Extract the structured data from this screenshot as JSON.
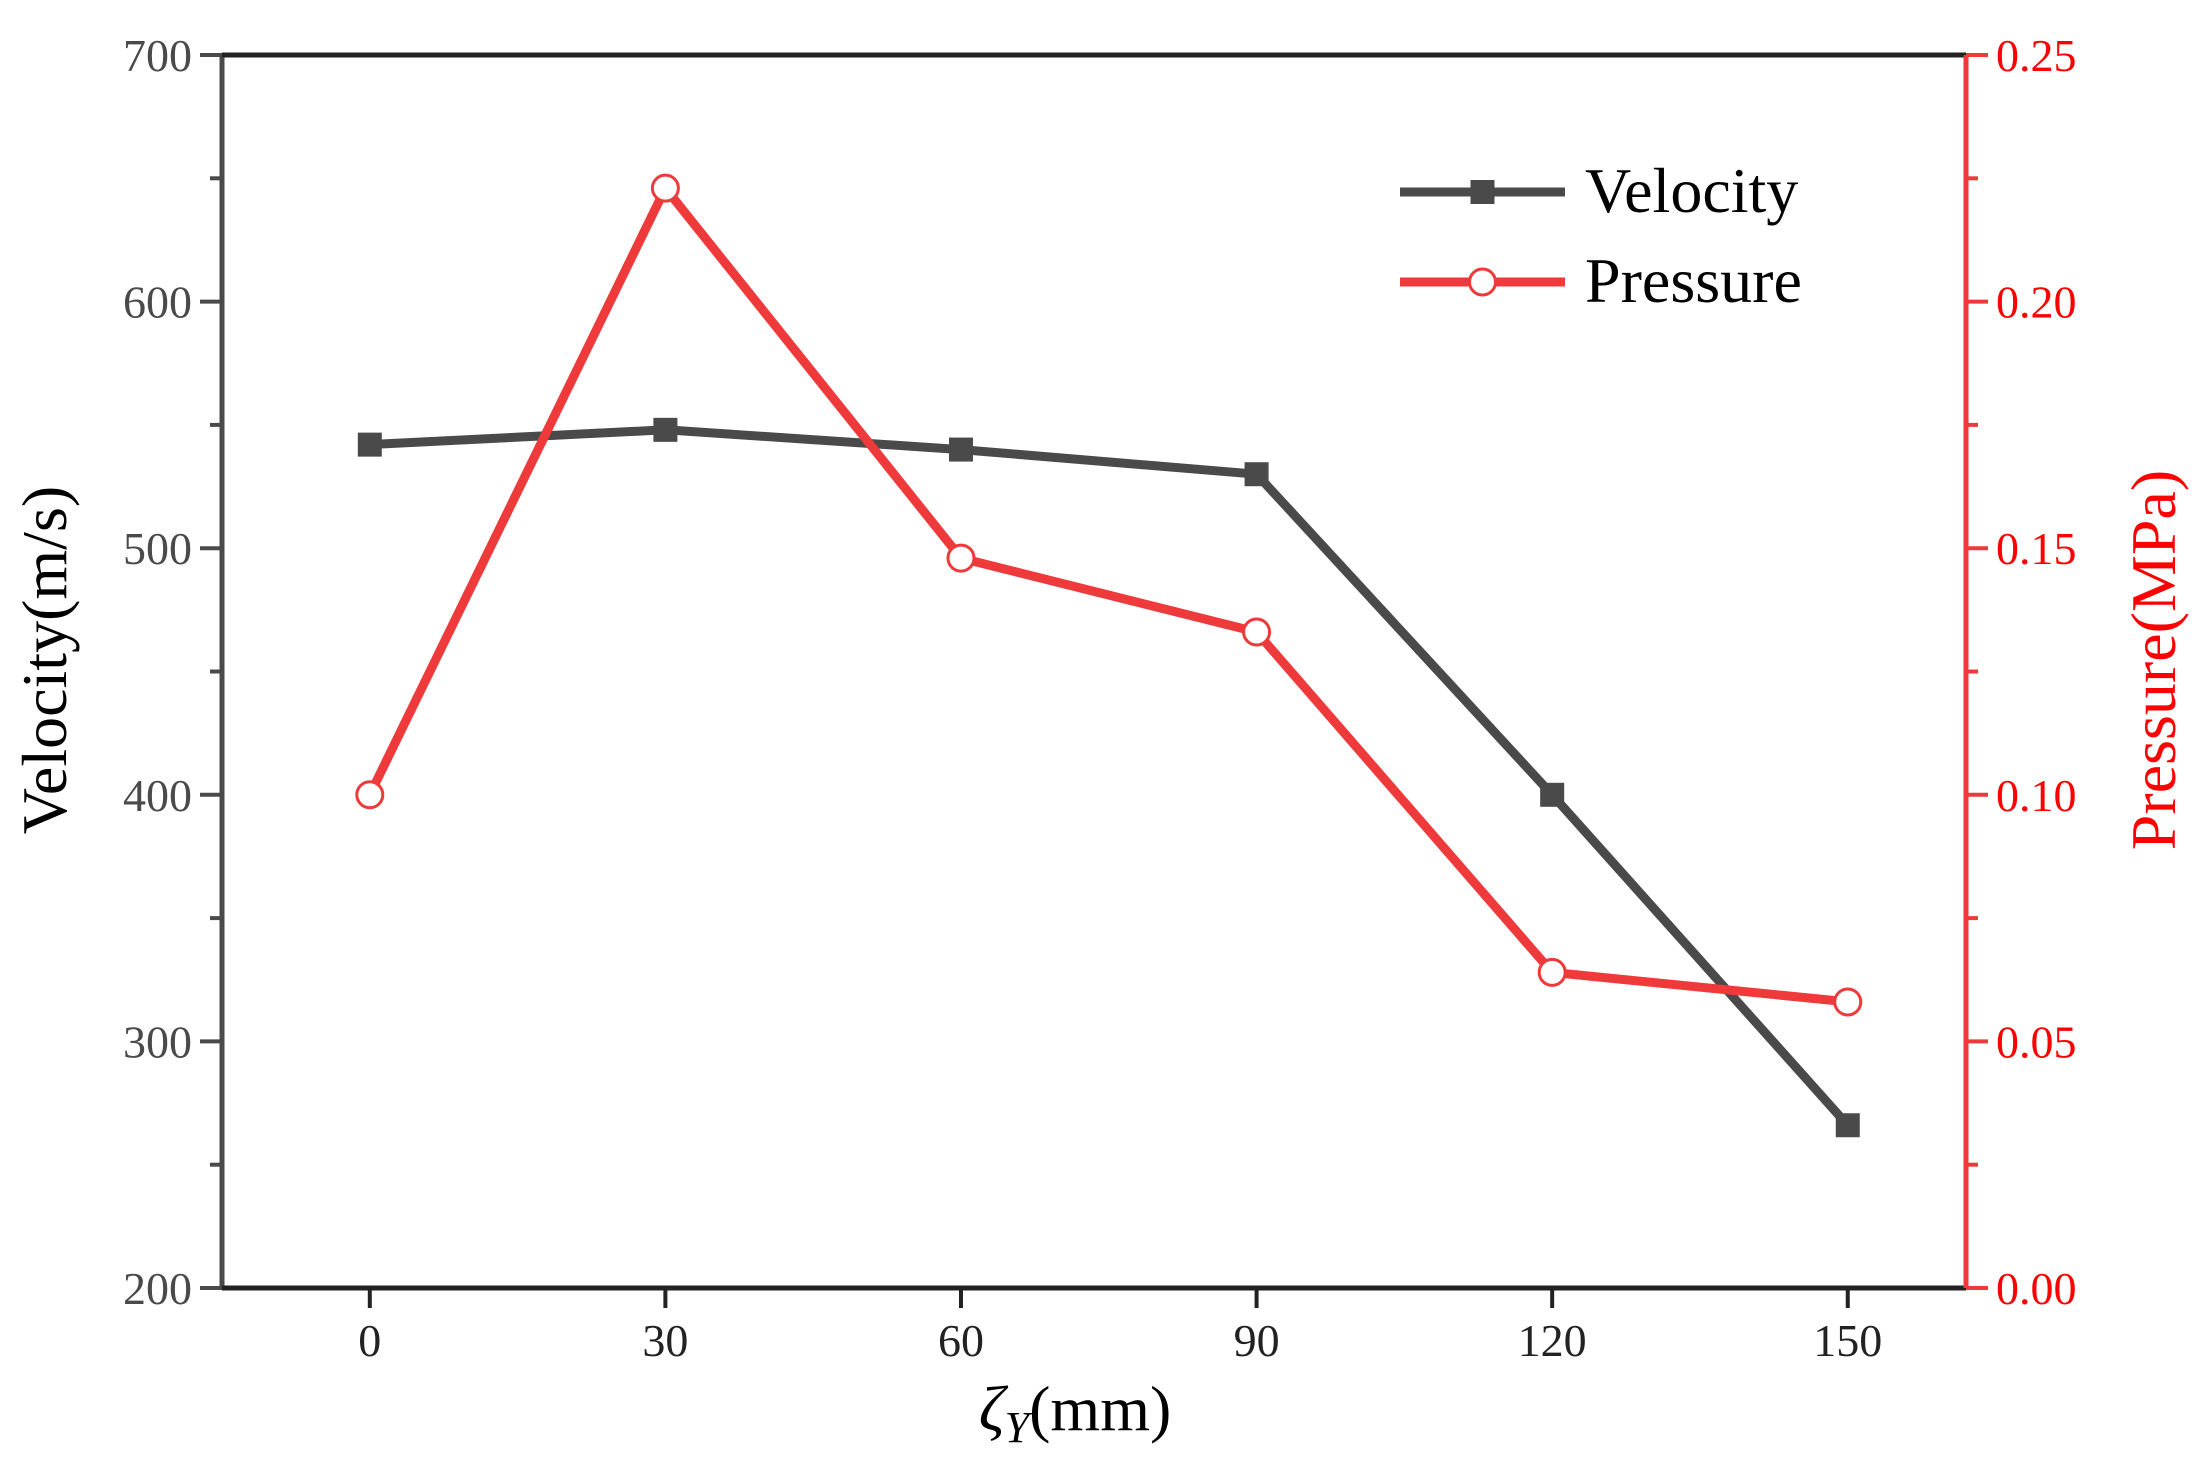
{
  "chart_data": {
    "type": "line",
    "title": "",
    "xlabel": {
      "symbol": "ζ",
      "subscript": "Y",
      "unit": "(mm)"
    },
    "ylabel_left": "Velocity(m/s)",
    "ylabel_right": "Pressure(MPa)",
    "x": [
      0,
      30,
      60,
      90,
      120,
      150
    ],
    "xlim": [
      -15,
      162
    ],
    "ylim_left": [
      200,
      700
    ],
    "ylim_right": [
      0.0,
      0.25
    ],
    "x_ticks": [
      0,
      30,
      60,
      90,
      120,
      150
    ],
    "y_left_ticks": [
      200,
      300,
      400,
      500,
      600,
      700
    ],
    "y_left_tick_labels": [
      "200",
      "300",
      "400",
      "500",
      "600",
      "700"
    ],
    "y_right_ticks": [
      0.0,
      0.05,
      0.1,
      0.15,
      0.2,
      0.25
    ],
    "y_right_tick_labels": [
      "0.00",
      "0.05",
      "0.10",
      "0.15",
      "0.20",
      "0.25"
    ],
    "grid": false,
    "legend_position": "top-right",
    "series": [
      {
        "name": "Velocity",
        "axis": "left",
        "marker": "filled-square",
        "color": "#4a4a4a",
        "values": [
          542,
          548,
          540,
          530,
          400,
          266
        ]
      },
      {
        "name": "Pressure",
        "axis": "right",
        "marker": "open-circle",
        "color": "#ee3a3a",
        "values": [
          0.1,
          0.223,
          0.148,
          0.133,
          0.064,
          0.058
        ]
      }
    ]
  },
  "colors": {
    "left_axis": "#4a4a4a",
    "right_axis": "#ee3a3a",
    "right_label": "#ff0000"
  }
}
